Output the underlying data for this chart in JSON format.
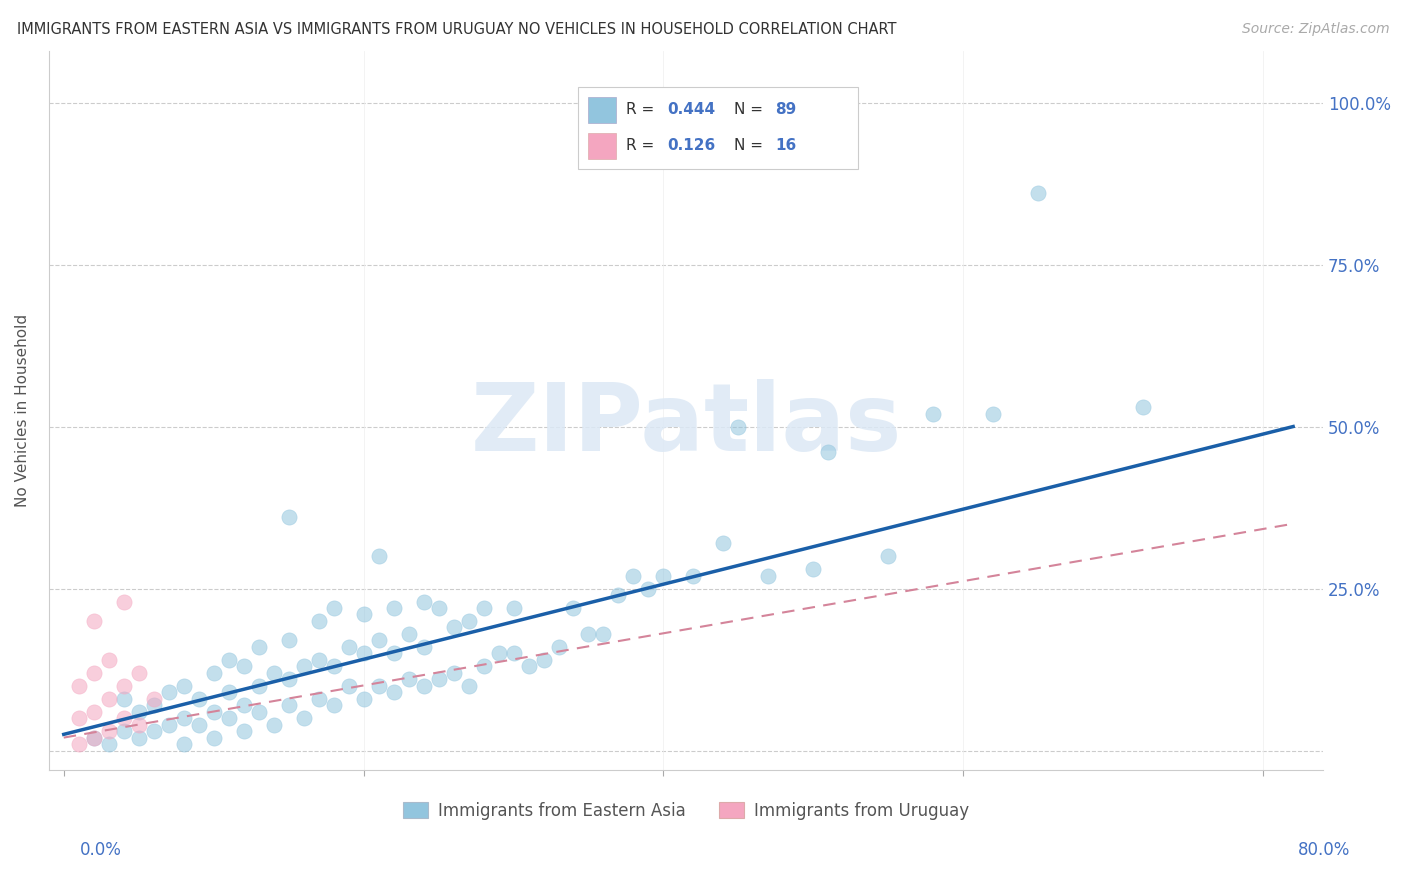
{
  "title": "IMMIGRANTS FROM EASTERN ASIA VS IMMIGRANTS FROM URUGUAY NO VEHICLES IN HOUSEHOLD CORRELATION CHART",
  "source": "Source: ZipAtlas.com",
  "ylabel": "No Vehicles in Household",
  "yticks": [
    0.0,
    0.25,
    0.5,
    0.75,
    1.0
  ],
  "ytick_labels": [
    "",
    "25.0%",
    "50.0%",
    "75.0%",
    "100.0%"
  ],
  "xlim": [
    -0.01,
    0.84
  ],
  "ylim": [
    -0.03,
    1.08
  ],
  "blue_color": "#92c5de",
  "pink_color": "#f4a6c0",
  "line_blue": "#1a5fa8",
  "line_pink": "#d4849a",
  "watermark": "ZIPatlas",
  "blue_scatter_x": [
    0.02,
    0.03,
    0.04,
    0.04,
    0.05,
    0.05,
    0.06,
    0.06,
    0.07,
    0.07,
    0.08,
    0.08,
    0.08,
    0.09,
    0.09,
    0.1,
    0.1,
    0.1,
    0.11,
    0.11,
    0.11,
    0.12,
    0.12,
    0.12,
    0.13,
    0.13,
    0.13,
    0.14,
    0.14,
    0.15,
    0.15,
    0.15,
    0.15,
    0.16,
    0.16,
    0.17,
    0.17,
    0.17,
    0.18,
    0.18,
    0.18,
    0.19,
    0.19,
    0.2,
    0.2,
    0.2,
    0.21,
    0.21,
    0.21,
    0.22,
    0.22,
    0.22,
    0.23,
    0.23,
    0.24,
    0.24,
    0.24,
    0.25,
    0.25,
    0.26,
    0.26,
    0.27,
    0.27,
    0.28,
    0.28,
    0.29,
    0.3,
    0.3,
    0.31,
    0.32,
    0.33,
    0.34,
    0.35,
    0.36,
    0.37,
    0.38,
    0.39,
    0.4,
    0.42,
    0.44,
    0.45,
    0.47,
    0.5,
    0.51,
    0.55,
    0.58,
    0.62,
    0.65,
    0.72
  ],
  "blue_scatter_y": [
    0.02,
    0.01,
    0.03,
    0.08,
    0.02,
    0.06,
    0.03,
    0.07,
    0.04,
    0.09,
    0.01,
    0.05,
    0.1,
    0.04,
    0.08,
    0.02,
    0.06,
    0.12,
    0.05,
    0.09,
    0.14,
    0.03,
    0.07,
    0.13,
    0.06,
    0.1,
    0.16,
    0.04,
    0.12,
    0.07,
    0.11,
    0.17,
    0.36,
    0.05,
    0.13,
    0.08,
    0.14,
    0.2,
    0.07,
    0.13,
    0.22,
    0.1,
    0.16,
    0.08,
    0.15,
    0.21,
    0.1,
    0.17,
    0.3,
    0.09,
    0.15,
    0.22,
    0.11,
    0.18,
    0.1,
    0.16,
    0.23,
    0.11,
    0.22,
    0.12,
    0.19,
    0.1,
    0.2,
    0.13,
    0.22,
    0.15,
    0.15,
    0.22,
    0.13,
    0.14,
    0.16,
    0.22,
    0.18,
    0.18,
    0.24,
    0.27,
    0.25,
    0.27,
    0.27,
    0.32,
    0.5,
    0.27,
    0.28,
    0.46,
    0.3,
    0.52,
    0.52,
    0.86,
    0.53
  ],
  "pink_scatter_x": [
    0.01,
    0.01,
    0.01,
    0.02,
    0.02,
    0.02,
    0.02,
    0.03,
    0.03,
    0.03,
    0.04,
    0.04,
    0.04,
    0.05,
    0.05,
    0.06
  ],
  "pink_scatter_y": [
    0.01,
    0.05,
    0.1,
    0.02,
    0.06,
    0.12,
    0.2,
    0.03,
    0.08,
    0.14,
    0.05,
    0.1,
    0.23,
    0.04,
    0.12,
    0.08
  ],
  "blue_line_x": [
    0.0,
    0.82
  ],
  "blue_line_y": [
    0.025,
    0.5
  ],
  "pink_line_x": [
    0.0,
    0.82
  ],
  "pink_line_y": [
    0.02,
    0.35
  ]
}
